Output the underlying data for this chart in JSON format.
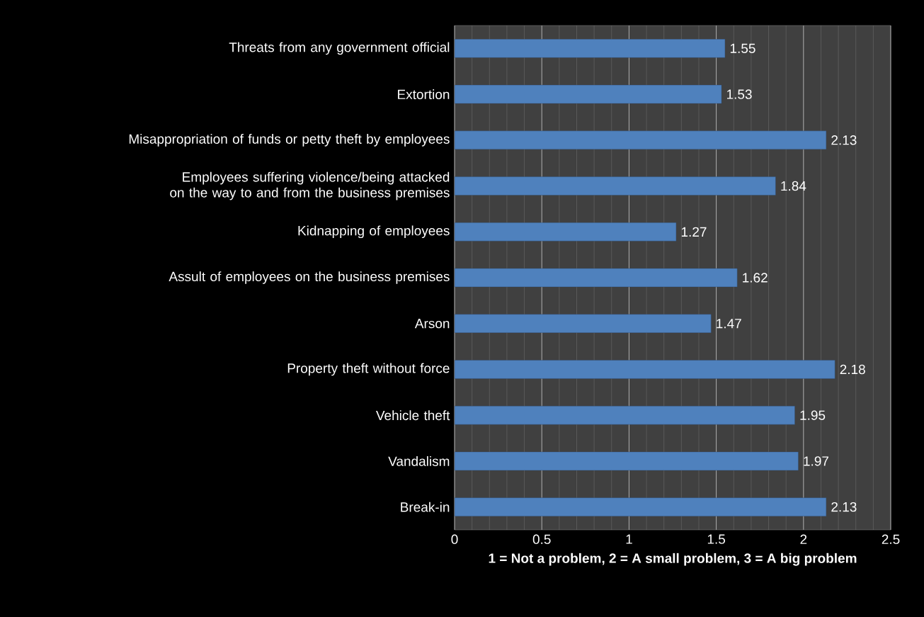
{
  "chart_data": {
    "type": "bar",
    "orientation": "horizontal",
    "categories": [
      "Threats from any government official",
      "Extortion",
      "Misappropriation of funds or petty theft by employees",
      "Employees suffering violence/being attacked on the way to and from the business premises",
      "Kidnapping of employees",
      "Assult of employees on the business premises",
      "Arson",
      "Property theft without force",
      "Vehicle theft",
      "Vandalism",
      "Break-in"
    ],
    "values": [
      1.55,
      1.53,
      2.13,
      1.84,
      1.27,
      1.62,
      1.47,
      2.18,
      1.95,
      1.97,
      2.13
    ],
    "color": "#4f81bd",
    "xlim": [
      0,
      2.5
    ],
    "xticks": [
      0,
      0.5,
      1,
      1.5,
      2,
      2.5
    ],
    "xlabel": "1 = Not a problem, 2 = A small problem, 3 = A big problem",
    "grid": "x",
    "data_labels": true
  }
}
